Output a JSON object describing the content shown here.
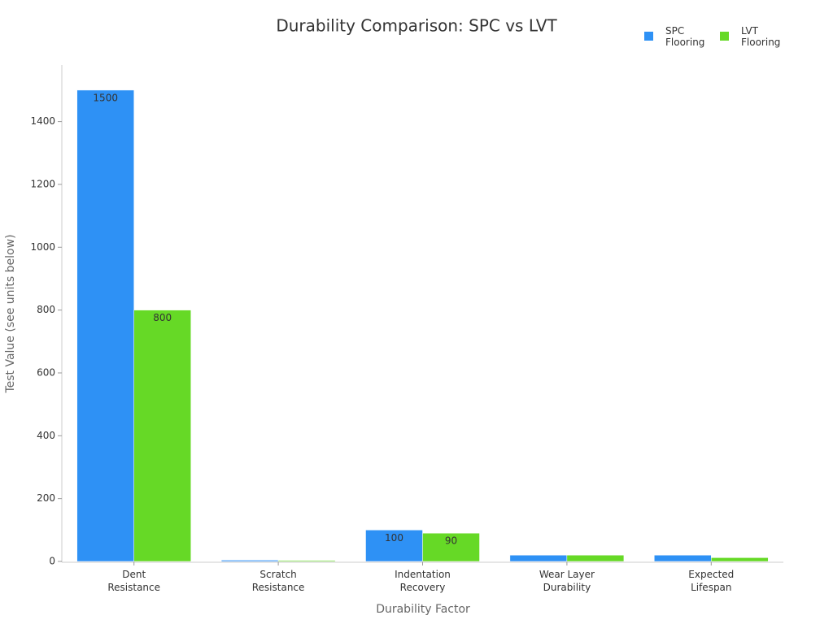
{
  "chart_data": {
    "type": "bar",
    "title": "Durability Comparison: SPC vs LVT",
    "x_label": "Durability Factor",
    "y_label": "Test Value (see units below)",
    "categories": [
      "Dent Resistance",
      "Scratch Resistance",
      "Indentation Recovery",
      "Wear Layer Durability",
      "Expected Lifespan"
    ],
    "series": [
      {
        "name": "SPC Flooring",
        "color": "#2e91f5",
        "values": [
          1500,
          4,
          100,
          20,
          20
        ]
      },
      {
        "name": "LVT Flooring",
        "color": "#66d926",
        "values": [
          800,
          3,
          90,
          20,
          12
        ]
      }
    ],
    "ylim": [
      0,
      1580
    ],
    "yticks": [
      0,
      200,
      400,
      600,
      800,
      1000,
      1200,
      1400
    ],
    "legend": "top-right"
  }
}
